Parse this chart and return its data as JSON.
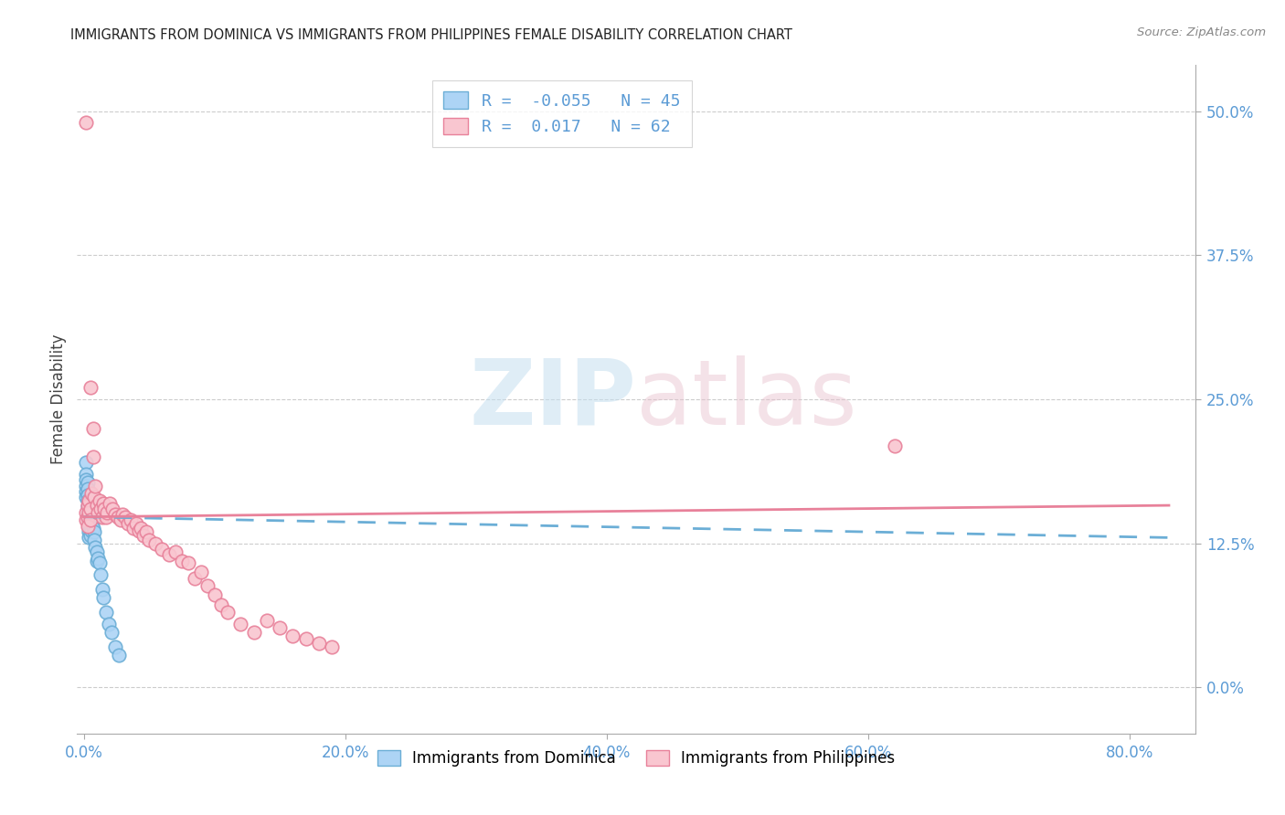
{
  "title": "IMMIGRANTS FROM DOMINICA VS IMMIGRANTS FROM PHILIPPINES FEMALE DISABILITY CORRELATION CHART",
  "source": "Source: ZipAtlas.com",
  "xlabel_ticks": [
    "0.0%",
    "20.0%",
    "40.0%",
    "60.0%",
    "80.0%"
  ],
  "xlabel_tick_vals": [
    0.0,
    0.2,
    0.4,
    0.6,
    0.8
  ],
  "ylabel": "Female Disability",
  "ylabel_ticks": [
    "0.0%",
    "12.5%",
    "25.0%",
    "37.5%",
    "50.0%"
  ],
  "ylabel_tick_vals": [
    0.0,
    0.125,
    0.25,
    0.375,
    0.5
  ],
  "xlim": [
    -0.005,
    0.85
  ],
  "ylim": [
    -0.04,
    0.54
  ],
  "dominica_color": "#add4f5",
  "dominica_edge_color": "#6baed6",
  "philippines_color": "#f9c6d0",
  "philippines_edge_color": "#e8819a",
  "dominica_R": -0.055,
  "dominica_N": 45,
  "philippines_R": 0.017,
  "philippines_N": 62,
  "watermark_zip": "ZIP",
  "watermark_atlas": "atlas",
  "dominica_x": [
    0.002,
    0.002,
    0.002,
    0.002,
    0.002,
    0.002,
    0.003,
    0.003,
    0.003,
    0.003,
    0.003,
    0.003,
    0.003,
    0.004,
    0.004,
    0.004,
    0.004,
    0.004,
    0.004,
    0.004,
    0.005,
    0.005,
    0.005,
    0.005,
    0.005,
    0.006,
    0.006,
    0.006,
    0.007,
    0.007,
    0.008,
    0.008,
    0.009,
    0.01,
    0.01,
    0.011,
    0.012,
    0.013,
    0.014,
    0.015,
    0.017,
    0.019,
    0.021,
    0.024,
    0.027
  ],
  "dominica_y": [
    0.195,
    0.185,
    0.18,
    0.175,
    0.17,
    0.165,
    0.178,
    0.172,
    0.167,
    0.162,
    0.157,
    0.152,
    0.147,
    0.16,
    0.155,
    0.15,
    0.145,
    0.14,
    0.135,
    0.13,
    0.155,
    0.148,
    0.142,
    0.138,
    0.132,
    0.148,
    0.142,
    0.136,
    0.145,
    0.138,
    0.135,
    0.128,
    0.122,
    0.118,
    0.11,
    0.112,
    0.108,
    0.098,
    0.085,
    0.078,
    0.065,
    0.055,
    0.048,
    0.035,
    0.028
  ],
  "philippines_x": [
    0.002,
    0.002,
    0.002,
    0.003,
    0.003,
    0.003,
    0.004,
    0.004,
    0.005,
    0.005,
    0.005,
    0.006,
    0.007,
    0.007,
    0.008,
    0.009,
    0.01,
    0.011,
    0.012,
    0.013,
    0.014,
    0.015,
    0.016,
    0.017,
    0.018,
    0.02,
    0.022,
    0.024,
    0.026,
    0.028,
    0.03,
    0.032,
    0.034,
    0.036,
    0.038,
    0.04,
    0.042,
    0.044,
    0.046,
    0.048,
    0.05,
    0.055,
    0.06,
    0.065,
    0.07,
    0.075,
    0.08,
    0.085,
    0.09,
    0.095,
    0.1,
    0.105,
    0.11,
    0.12,
    0.13,
    0.14,
    0.15,
    0.16,
    0.62,
    0.17,
    0.18,
    0.19
  ],
  "philippines_y": [
    0.49,
    0.152,
    0.145,
    0.158,
    0.148,
    0.14,
    0.162,
    0.152,
    0.26,
    0.155,
    0.145,
    0.168,
    0.225,
    0.2,
    0.165,
    0.175,
    0.158,
    0.152,
    0.162,
    0.155,
    0.148,
    0.16,
    0.155,
    0.148,
    0.152,
    0.16,
    0.155,
    0.15,
    0.148,
    0.145,
    0.15,
    0.148,
    0.142,
    0.145,
    0.138,
    0.142,
    0.136,
    0.138,
    0.132,
    0.135,
    0.128,
    0.125,
    0.12,
    0.115,
    0.118,
    0.11,
    0.108,
    0.095,
    0.1,
    0.088,
    0.08,
    0.072,
    0.065,
    0.055,
    0.048,
    0.058,
    0.052,
    0.045,
    0.21,
    0.042,
    0.038,
    0.035
  ],
  "trendline_dominica_x0": 0.0,
  "trendline_dominica_x1": 0.83,
  "trendline_dominica_y0": 0.148,
  "trendline_dominica_y1": 0.13,
  "trendline_philippines_x0": 0.0,
  "trendline_philippines_x1": 0.83,
  "trendline_philippines_y0": 0.148,
  "trendline_philippines_y1": 0.158
}
